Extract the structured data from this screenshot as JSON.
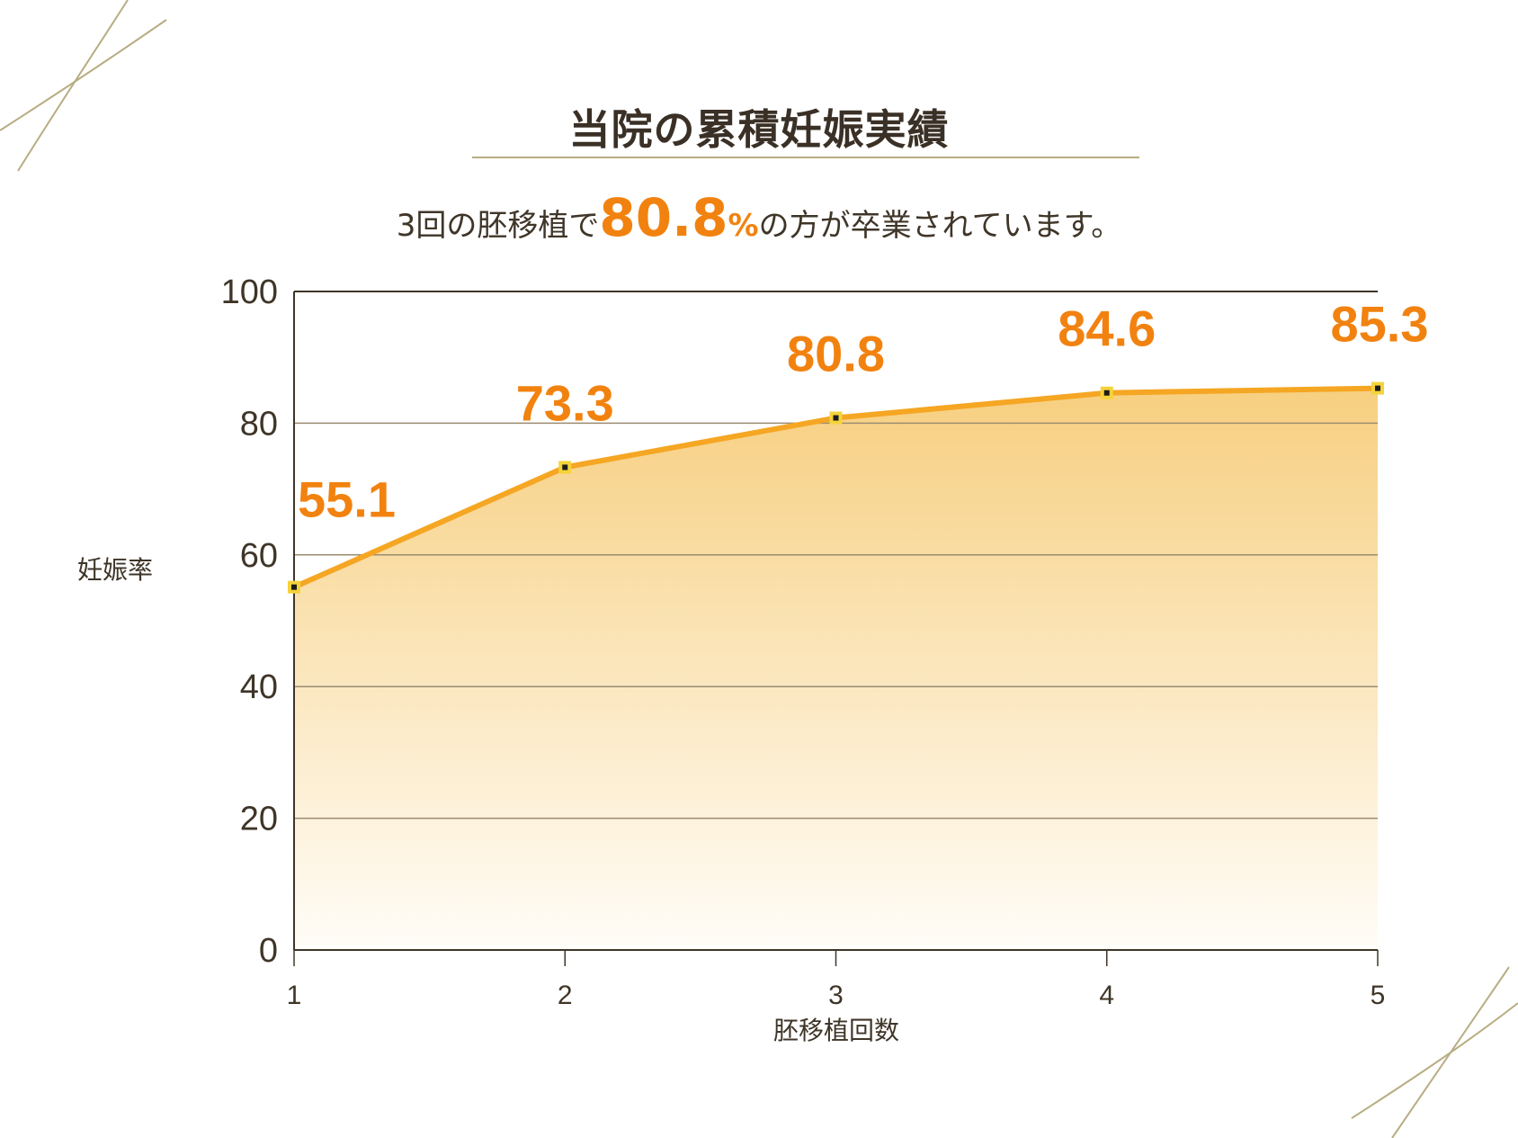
{
  "title": "当院の累積妊娠実績",
  "subtitle": {
    "prefix": "3回の胚移植で",
    "highlight": "80.8",
    "percent": "%",
    "suffix": "の方が卒業されています。"
  },
  "colors": {
    "accent": "#f2820f",
    "line": "#f5a623",
    "fill_top": "#f7cf80",
    "fill_bottom": "#fffdf8",
    "grid": "#9c8c70",
    "text": "#3f3528",
    "deco": "#b8ad83"
  },
  "chart_data": {
    "type": "area",
    "title": "当院の累積妊娠実績",
    "xlabel": "胚移植回数",
    "ylabel": "妊娠率",
    "x": [
      1,
      2,
      3,
      4,
      5
    ],
    "x_tick_labels": [
      "1",
      "2",
      "3",
      "4",
      "5"
    ],
    "y_tick_labels": [
      "0",
      "20",
      "40",
      "60",
      "80",
      "100"
    ],
    "ylim": [
      0,
      100
    ],
    "y_ticks": [
      0,
      20,
      40,
      60,
      80,
      100
    ],
    "series": [
      {
        "values": [
          55.1,
          73.3,
          80.8,
          84.6,
          85.3
        ]
      }
    ],
    "data_labels": [
      "55.1",
      "73.3",
      "80.8",
      "84.6",
      "85.3"
    ],
    "grid": true,
    "legend": "none"
  }
}
